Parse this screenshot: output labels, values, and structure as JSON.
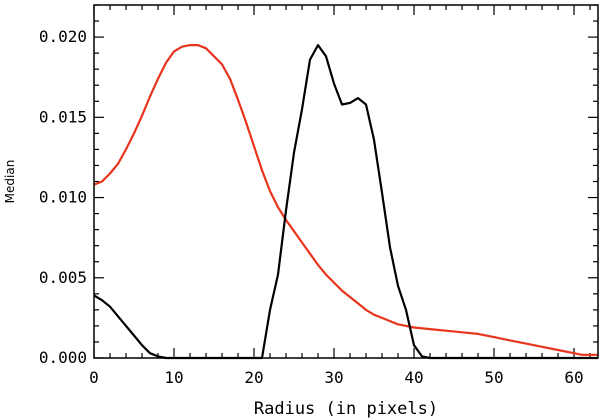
{
  "chart_data": {
    "type": "line",
    "title": "",
    "xlabel": "Radius (in pixels)",
    "ylabel": "Median",
    "xlim": [
      0,
      63
    ],
    "ylim": [
      0,
      0.022
    ],
    "x_ticks": [
      0,
      10,
      20,
      30,
      40,
      50,
      60
    ],
    "x_tick_labels": [
      "0",
      "10",
      "20",
      "30",
      "40",
      "50",
      "60"
    ],
    "y_ticks": [
      0,
      0.005,
      0.01,
      0.015,
      0.02
    ],
    "y_tick_labels": [
      "0.000",
      "0.005",
      "0.010",
      "0.015",
      "0.020"
    ],
    "grid": false,
    "legend": "none",
    "series": [
      {
        "color": "#e8341c",
        "x": [
          0,
          1,
          2,
          3,
          4,
          5,
          6,
          7,
          8,
          9,
          10,
          11,
          12,
          13,
          14,
          15,
          16,
          17,
          18,
          19,
          20,
          21,
          22,
          23,
          24,
          25,
          26,
          27,
          28,
          29,
          30,
          31,
          32,
          33,
          34,
          35,
          36,
          37,
          38,
          39,
          40,
          42,
          44,
          46,
          48,
          50,
          52,
          54,
          56,
          58,
          60,
          61,
          62,
          63
        ],
        "y": [
          0.0108,
          0.011,
          0.0115,
          0.0121,
          0.013,
          0.014,
          0.0151,
          0.0163,
          0.0174,
          0.0184,
          0.0191,
          0.0194,
          0.0195,
          0.0195,
          0.0193,
          0.0188,
          0.0183,
          0.0174,
          0.0161,
          0.0147,
          0.0132,
          0.0117,
          0.0104,
          0.0094,
          0.0086,
          0.0079,
          0.0072,
          0.0065,
          0.0058,
          0.0052,
          0.0047,
          0.0042,
          0.0038,
          0.0034,
          0.003,
          0.0027,
          0.0025,
          0.0023,
          0.0021,
          0.002,
          0.0019,
          0.0018,
          0.0017,
          0.0016,
          0.0015,
          0.0013,
          0.0011,
          0.0009,
          0.0007,
          0.0005,
          0.0003,
          0.0002,
          0.0002,
          0.0002
        ]
      },
      {
        "color": "#000000",
        "x": [
          0,
          1,
          2,
          3,
          4,
          5,
          6,
          7,
          8,
          9,
          10,
          12,
          14,
          16,
          18,
          20,
          21,
          22,
          23,
          24,
          25,
          26,
          27,
          28,
          29,
          30,
          31,
          32,
          33,
          34,
          35,
          36,
          37,
          38,
          39,
          40,
          41,
          42,
          44,
          50,
          55,
          60,
          63
        ],
        "y": [
          0.0039,
          0.0036,
          0.0032,
          0.0026,
          0.002,
          0.0014,
          0.0008,
          0.0003,
          0.0001,
          0.0,
          0.0,
          0.0,
          0.0,
          0.0,
          0.0,
          0.0,
          0.0,
          0.003,
          0.0052,
          0.0092,
          0.0128,
          0.0155,
          0.0186,
          0.0195,
          0.0188,
          0.0171,
          0.0158,
          0.0159,
          0.0162,
          0.0158,
          0.0136,
          0.0103,
          0.0069,
          0.0045,
          0.003,
          0.0008,
          0.0001,
          0.0,
          0.0,
          0.0,
          0.0,
          0.0,
          0.0
        ]
      }
    ]
  }
}
